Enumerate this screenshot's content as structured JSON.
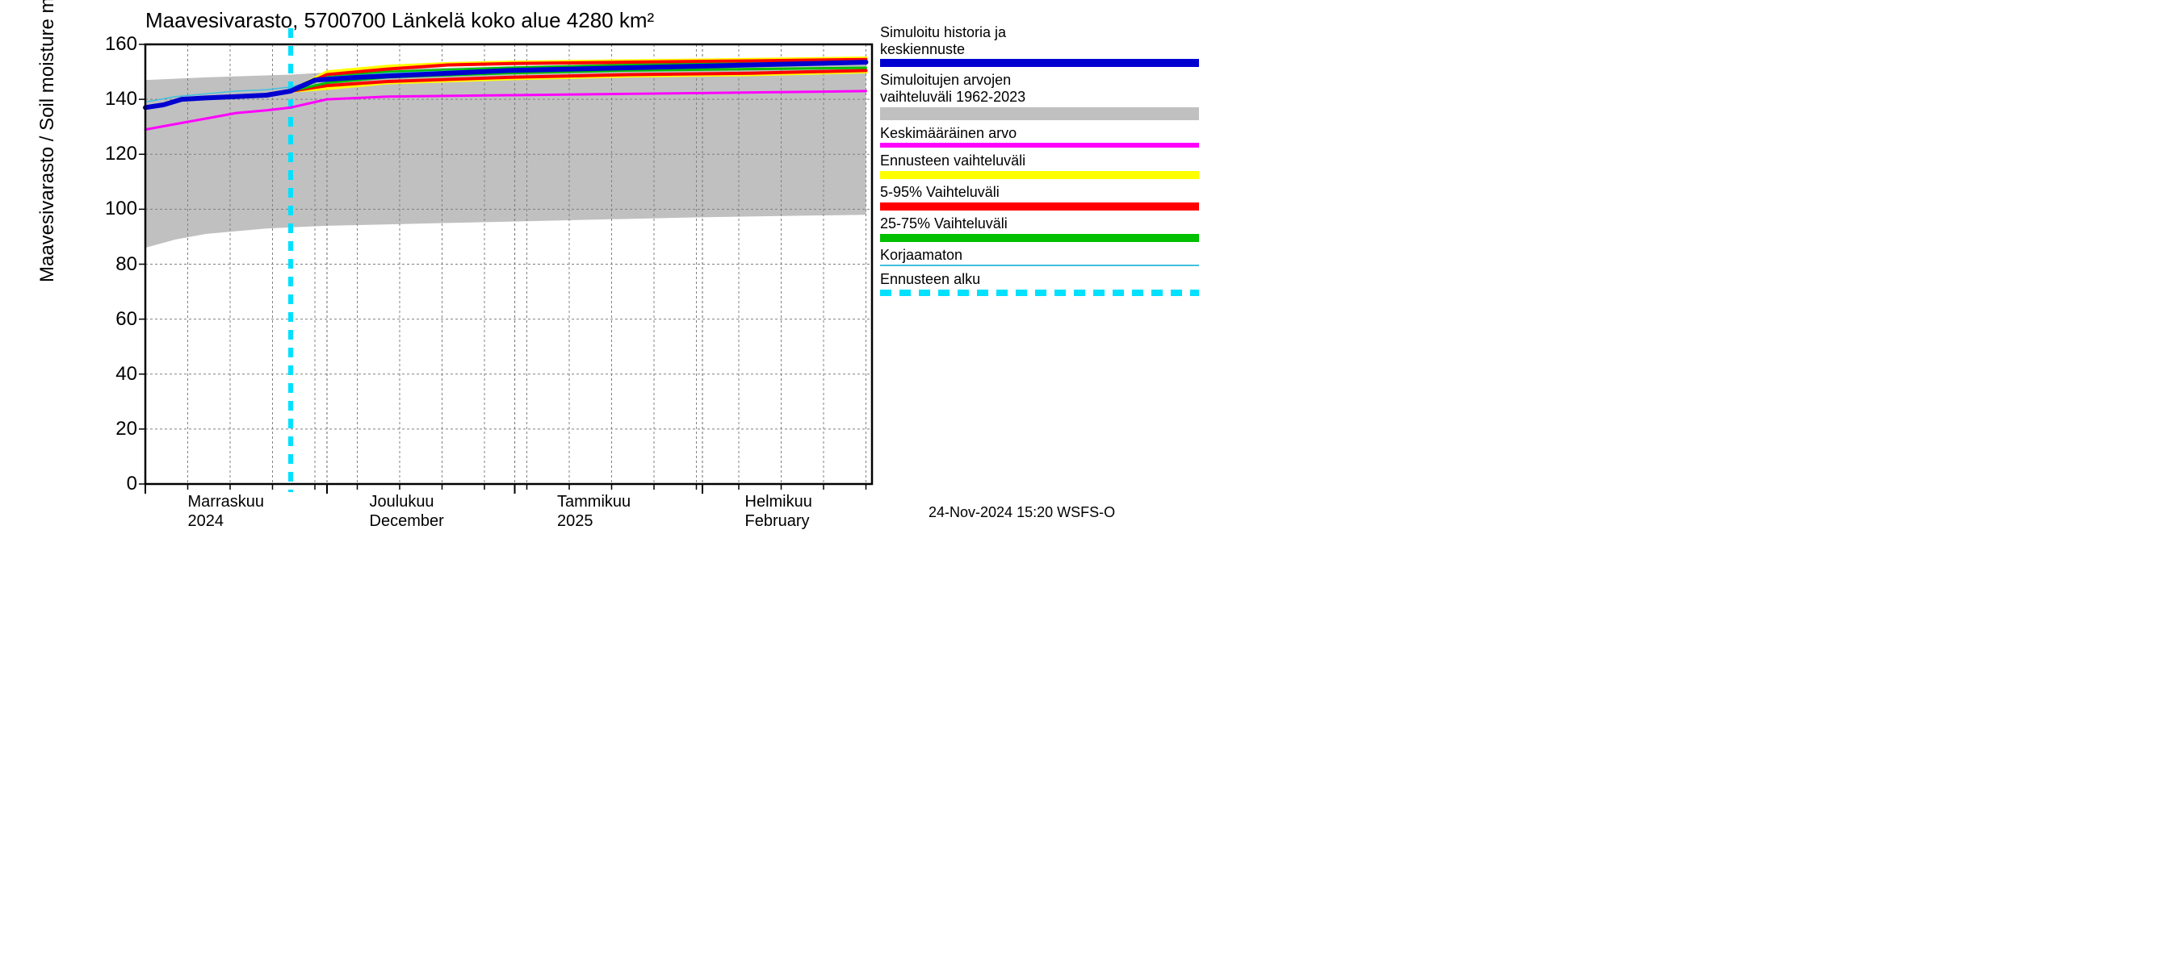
{
  "title": "Maavesivarasto, 5700700 Länkelä koko alue 4280 km²",
  "ylabel": "Maavesivarasto / Soil moisture    mm",
  "footer": "24-Nov-2024 15:20 WSFS-O",
  "chart": {
    "type": "line",
    "background_color": "#ffffff",
    "grid_color": "#808080",
    "grid_dash": "3,3",
    "axis_color": "#000000",
    "ylim": [
      0,
      160
    ],
    "yticks": [
      0,
      20,
      40,
      60,
      80,
      100,
      120,
      140,
      160
    ],
    "x_range_days": 120,
    "forecast_start_day": 24,
    "weekly_ticks_days": [
      0,
      7,
      14,
      21,
      28,
      35,
      42,
      49,
      56,
      63,
      70,
      77,
      84,
      91,
      98,
      105,
      112,
      119
    ],
    "month_starts_days": [
      0,
      30,
      61,
      92
    ],
    "x_month_labels": [
      {
        "day": 7,
        "line1": "Marraskuu",
        "line2": "2024"
      },
      {
        "day": 37,
        "line1": "Joulukuu",
        "line2": "December"
      },
      {
        "day": 68,
        "line1": "Tammikuu",
        "line2": "2025"
      },
      {
        "day": 99,
        "line1": "Helmikuu",
        "line2": "February"
      }
    ],
    "series": {
      "hist_band_upper": {
        "color": "#c0c0c0",
        "points": [
          [
            0,
            147
          ],
          [
            10,
            148
          ],
          [
            24,
            149
          ],
          [
            40,
            151
          ],
          [
            60,
            152
          ],
          [
            80,
            153
          ],
          [
            100,
            154
          ],
          [
            119,
            154
          ]
        ]
      },
      "hist_band_lower": {
        "color": "#c0c0c0",
        "points": [
          [
            0,
            86
          ],
          [
            5,
            89
          ],
          [
            10,
            91
          ],
          [
            20,
            93
          ],
          [
            30,
            94
          ],
          [
            50,
            95
          ],
          [
            70,
            96
          ],
          [
            90,
            97
          ],
          [
            119,
            98
          ]
        ]
      },
      "yellow_upper": {
        "color": "#ffff00",
        "width": 4,
        "points": [
          [
            24,
            143
          ],
          [
            30,
            150
          ],
          [
            40,
            152
          ],
          [
            50,
            153
          ],
          [
            60,
            153.5
          ],
          [
            80,
            154
          ],
          [
            100,
            154.5
          ],
          [
            119,
            155
          ]
        ]
      },
      "yellow_lower": {
        "color": "#ffff00",
        "width": 4,
        "points": [
          [
            24,
            143
          ],
          [
            30,
            144
          ],
          [
            40,
            146
          ],
          [
            60,
            147.5
          ],
          [
            80,
            148.5
          ],
          [
            100,
            149
          ],
          [
            119,
            150
          ]
        ]
      },
      "red_upper": {
        "color": "#ff0000",
        "width": 4,
        "points": [
          [
            24,
            143
          ],
          [
            30,
            149
          ],
          [
            40,
            151
          ],
          [
            50,
            152.5
          ],
          [
            60,
            153
          ],
          [
            80,
            153.5
          ],
          [
            100,
            154
          ],
          [
            119,
            154.5
          ]
        ]
      },
      "red_lower": {
        "color": "#ff0000",
        "width": 4,
        "points": [
          [
            24,
            143
          ],
          [
            30,
            145
          ],
          [
            40,
            146.5
          ],
          [
            60,
            148
          ],
          [
            80,
            149
          ],
          [
            100,
            149.5
          ],
          [
            119,
            150.5
          ]
        ]
      },
      "green_upper": {
        "color": "#00c000",
        "width": 3,
        "points": [
          [
            24,
            143
          ],
          [
            30,
            148
          ],
          [
            40,
            150
          ],
          [
            60,
            151.5
          ],
          [
            80,
            152.5
          ],
          [
            100,
            153
          ],
          [
            119,
            153.5
          ]
        ]
      },
      "green_lower": {
        "color": "#00c000",
        "width": 3,
        "points": [
          [
            24,
            143
          ],
          [
            30,
            146
          ],
          [
            40,
            148
          ],
          [
            60,
            149.5
          ],
          [
            80,
            150.5
          ],
          [
            100,
            151
          ],
          [
            119,
            151.5
          ]
        ]
      },
      "blue_main": {
        "color": "#0000d0",
        "width": 6,
        "points": [
          [
            0,
            137
          ],
          [
            3,
            138
          ],
          [
            6,
            140
          ],
          [
            10,
            140.5
          ],
          [
            15,
            141
          ],
          [
            20,
            141.5
          ],
          [
            24,
            143
          ],
          [
            28,
            147
          ],
          [
            35,
            148
          ],
          [
            45,
            149
          ],
          [
            60,
            150.5
          ],
          [
            80,
            151.5
          ],
          [
            100,
            152.5
          ],
          [
            119,
            153.5
          ]
        ]
      },
      "magenta": {
        "color": "#ff00ff",
        "width": 3,
        "points": [
          [
            0,
            129
          ],
          [
            5,
            131
          ],
          [
            10,
            133
          ],
          [
            15,
            135
          ],
          [
            20,
            136
          ],
          [
            24,
            137
          ],
          [
            30,
            140
          ],
          [
            40,
            141
          ],
          [
            60,
            141.5
          ],
          [
            80,
            142
          ],
          [
            100,
            142.5
          ],
          [
            119,
            143
          ]
        ]
      },
      "korjaamaton": {
        "color": "#40c0e0",
        "width": 1.5,
        "points": [
          [
            0,
            139
          ],
          [
            5,
            141
          ],
          [
            10,
            142
          ],
          [
            15,
            143
          ],
          [
            20,
            143.5
          ],
          [
            24,
            144.5
          ],
          [
            30,
            148
          ],
          [
            40,
            149.5
          ],
          [
            60,
            151
          ],
          [
            80,
            152
          ],
          [
            100,
            153
          ],
          [
            119,
            153.5
          ]
        ]
      },
      "forecast_start": {
        "color": "#00e0ff",
        "width": 6,
        "dash": "12,10",
        "x": 24
      }
    }
  },
  "legend": [
    {
      "label": "Simuloitu historia ja\nkeskiennuste",
      "color": "#0000d0",
      "style": "thick"
    },
    {
      "label": "Simuloitujen arvojen\nvaihteluväli 1962-2023",
      "color": "#c0c0c0",
      "style": "band"
    },
    {
      "label": "Keskimääräinen arvo",
      "color": "#ff00ff",
      "style": "line"
    },
    {
      "label": "Ennusteen vaihteluväli",
      "color": "#ffff00",
      "style": "thick"
    },
    {
      "label": "5-95% Vaihteluväli",
      "color": "#ff0000",
      "style": "thick"
    },
    {
      "label": "25-75% Vaihteluväli",
      "color": "#00c000",
      "style": "thick"
    },
    {
      "label": "Korjaamaton",
      "color": "#40c0e0",
      "style": "thin"
    },
    {
      "label": "Ennusteen alku",
      "color": "#00e0ff",
      "style": "dashed"
    }
  ]
}
